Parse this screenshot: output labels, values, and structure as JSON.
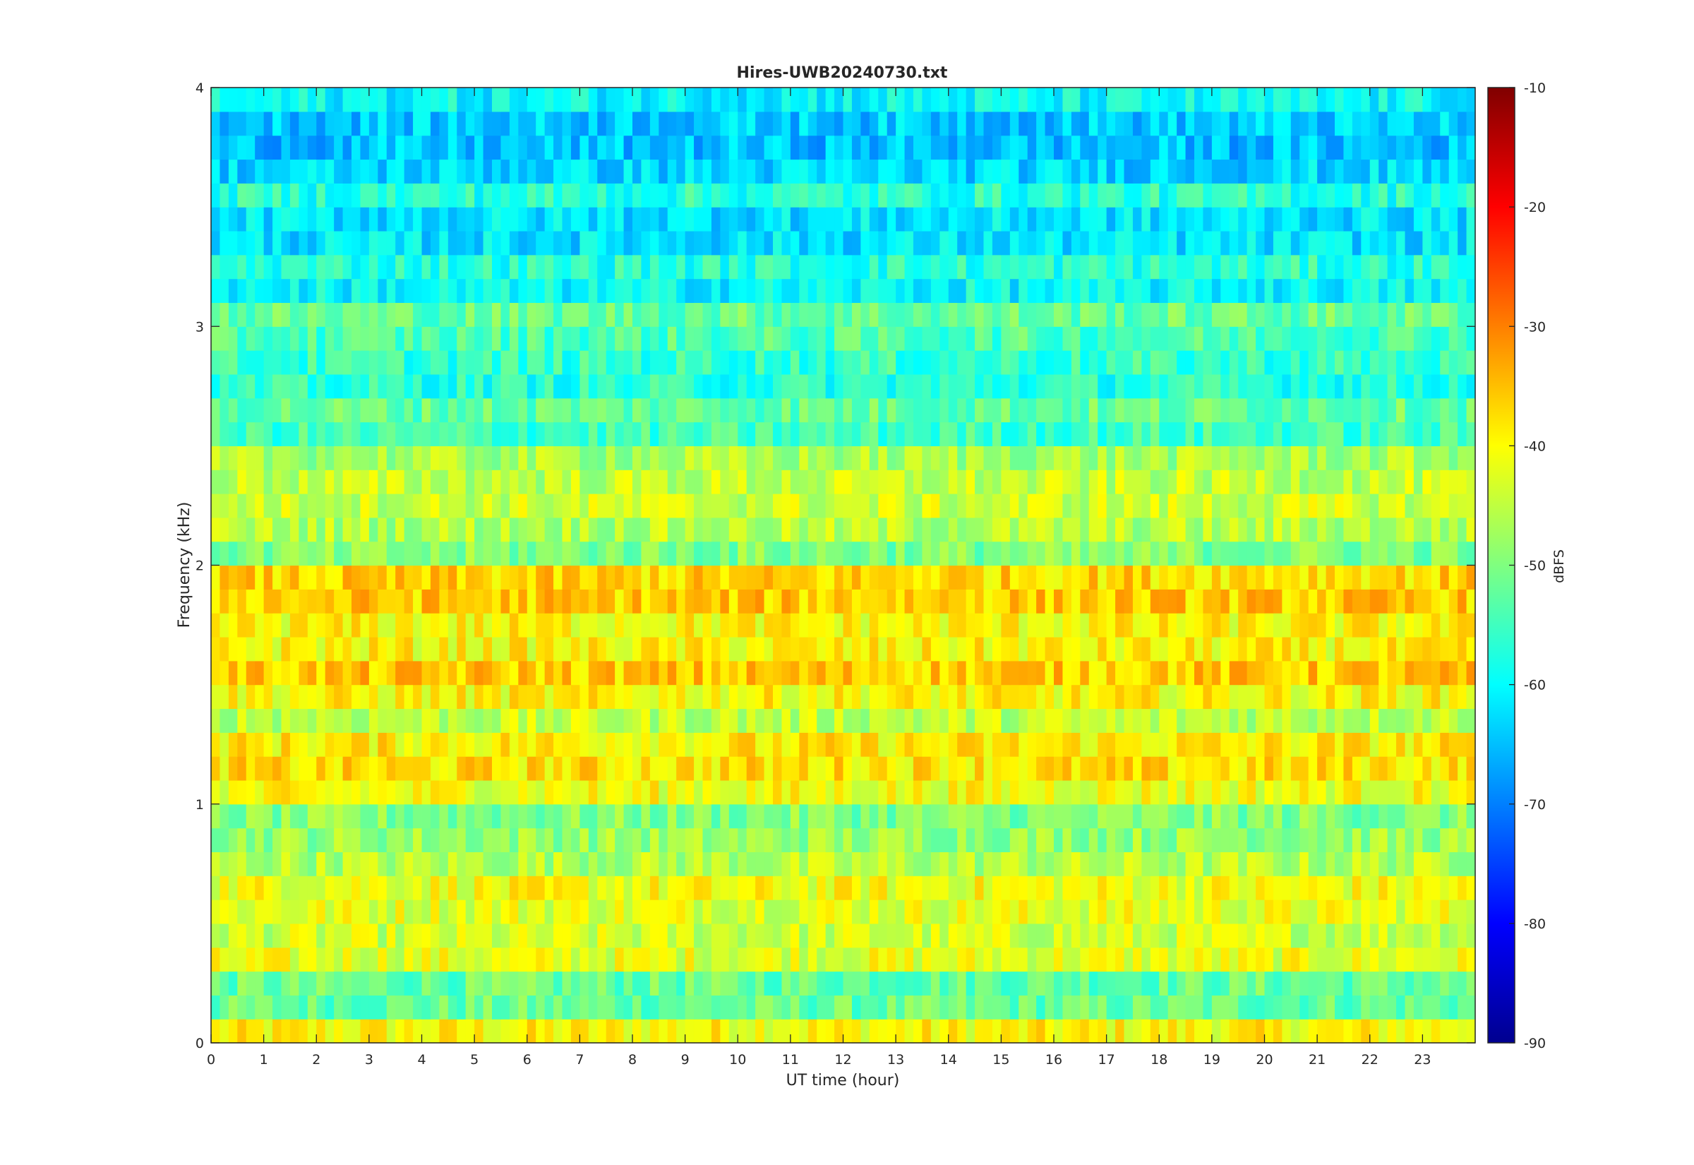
{
  "chart_data": {
    "type": "heatmap",
    "title": "Hires-UWB20240730.txt",
    "xlabel": "UT time (hour)",
    "ylabel": "Frequency (kHz)",
    "xlim": [
      0,
      24
    ],
    "ylim": [
      0,
      4
    ],
    "x_ticks": [
      0,
      1,
      2,
      3,
      4,
      5,
      6,
      7,
      8,
      9,
      10,
      11,
      12,
      13,
      14,
      15,
      16,
      17,
      18,
      19,
      20,
      21,
      22,
      23
    ],
    "y_ticks": [
      0,
      1,
      2,
      3,
      4
    ],
    "colorbar": {
      "label": "dBFS",
      "range": [
        -90,
        -10
      ],
      "ticks": [
        -90,
        -80,
        -70,
        -60,
        -50,
        -40,
        -30,
        -20,
        -10
      ],
      "colormap": "jet"
    },
    "frequency_bands_khz": [
      0.05,
      0.15,
      0.25,
      0.35,
      0.45,
      0.55,
      0.65,
      0.75,
      0.85,
      0.95,
      1.05,
      1.15,
      1.25,
      1.35,
      1.45,
      1.55,
      1.65,
      1.75,
      1.85,
      1.95,
      2.05,
      2.15,
      2.25,
      2.35,
      2.45,
      2.55,
      2.65,
      2.75,
      2.85,
      2.95,
      3.05,
      3.15,
      3.25,
      3.35,
      3.45,
      3.55,
      3.65,
      3.75,
      3.85,
      3.95
    ],
    "band_levels_dbfs": [
      -40,
      -52,
      -52,
      -42,
      -44,
      -42,
      -41,
      -46,
      -48,
      -50,
      -41,
      -38,
      -39,
      -45,
      -40,
      -36,
      -40,
      -40,
      -36,
      -37,
      -50,
      -46,
      -44,
      -45,
      -47,
      -55,
      -52,
      -57,
      -56,
      -54,
      -52,
      -60,
      -57,
      -62,
      -62,
      -57,
      -63,
      -65,
      -64,
      -60
    ],
    "notes_levels": "Approximate mean level per 0.1 kHz band across the day"
  }
}
